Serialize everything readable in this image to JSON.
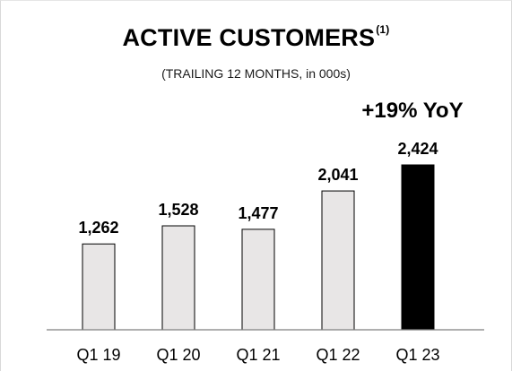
{
  "header": {
    "title": "ACTIVE CUSTOMERS",
    "title_superscript": "(1)",
    "subtitle": "(TRAILING 12 MONTHS, in 000s)",
    "annotation": "+19% YoY"
  },
  "colors": {
    "bar_fill": "#e8e6e6",
    "bar_highlight": "#000000",
    "bar_stroke": "#000000",
    "axis": "#7f7f7f"
  },
  "chart_data": {
    "type": "bar",
    "title": "ACTIVE CUSTOMERS",
    "subtitle": "(TRAILING 12 MONTHS, in 000s)",
    "categories": [
      "Q1 19",
      "Q1 20",
      "Q1 21",
      "Q1 22",
      "Q1 23"
    ],
    "values": [
      1262,
      1528,
      1477,
      2041,
      2424
    ],
    "value_labels": [
      "1,262",
      "1,528",
      "1,477",
      "2,041",
      "2,424"
    ],
    "highlight_index": 4,
    "annotation": "+19% YoY",
    "xlabel": "",
    "ylabel": "",
    "ylim": [
      0,
      2424
    ],
    "grid": false,
    "legend": "none"
  }
}
